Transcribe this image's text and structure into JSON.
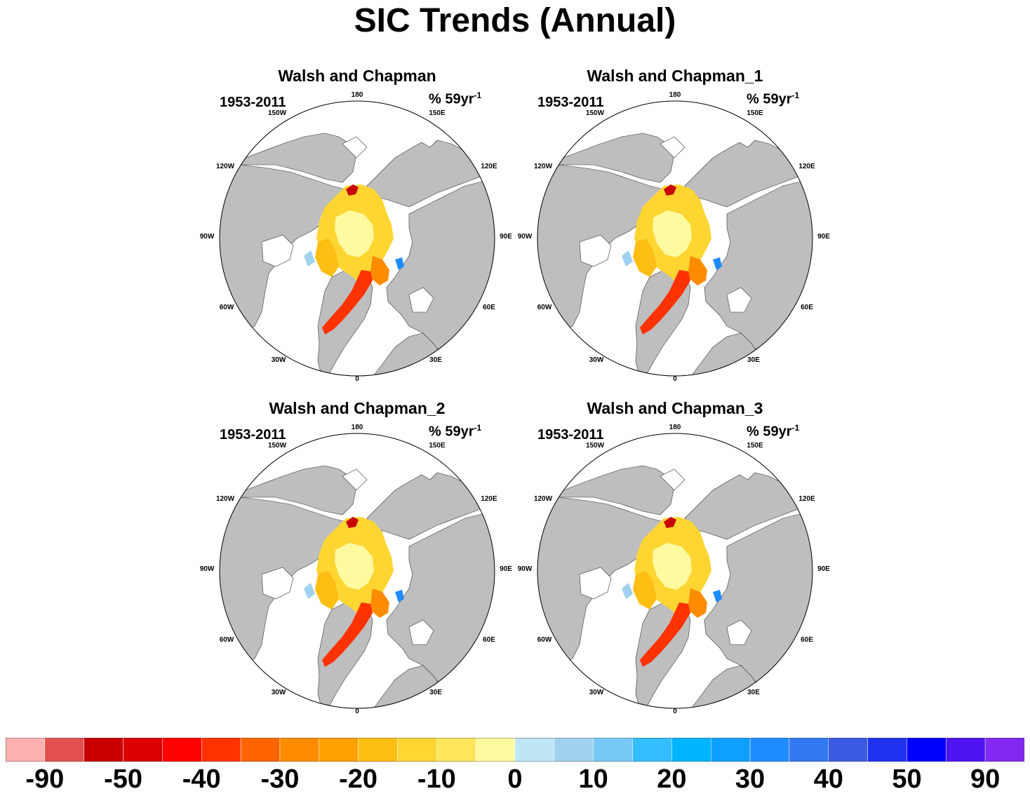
{
  "title": "SIC Trends (Annual)",
  "panels": [
    {
      "title": "Walsh and Chapman",
      "period": "1953-2011",
      "units_main": "% 59yr",
      "units_sup": "-1"
    },
    {
      "title": "Walsh and Chapman_1",
      "period": "1953-2011",
      "units_main": "% 59yr",
      "units_sup": "-1"
    },
    {
      "title": "Walsh and Chapman_2",
      "period": "1953-2011",
      "units_main": "% 59yr",
      "units_sup": "-1"
    },
    {
      "title": "Walsh and Chapman_3",
      "period": "1953-2011",
      "units_main": "% 59yr",
      "units_sup": "-1"
    }
  ],
  "longitude_labels": [
    "180",
    "150E",
    "120E",
    "90E",
    "60E",
    "30E",
    "0",
    "30W",
    "60W",
    "90W",
    "120W",
    "150W"
  ],
  "colors": {
    "land": "#bebebe",
    "ocean": "#ffffff",
    "colorbar": [
      "#ffb1b1",
      "#e35050",
      "#c80000",
      "#dc0000",
      "#ff0000",
      "#ff3200",
      "#ff6400",
      "#ff8c00",
      "#ffa000",
      "#ffbe14",
      "#ffd532",
      "#ffe65a",
      "#fffaa0",
      "#bee6f5",
      "#a0d2f0",
      "#78c8f5",
      "#32beff",
      "#00b4ff",
      "#0fa0ff",
      "#1e8cff",
      "#3278f0",
      "#3c5ae6",
      "#1e32f0",
      "#0000ff",
      "#5014f0",
      "#8228f0"
    ]
  },
  "chart_data": {
    "type": "heatmap",
    "title": "SIC Trends (Annual)",
    "projection": "north polar stereographic",
    "variable": "sea ice concentration trend",
    "units": "% 59yr-1",
    "period": "1953-2011",
    "panels": [
      "Walsh and Chapman",
      "Walsh and Chapman_1",
      "Walsh and Chapman_2",
      "Walsh and Chapman_3"
    ],
    "colorbar_labels": [
      "-90",
      "-50",
      "-40",
      "-30",
      "-20",
      "-10",
      "0",
      "10",
      "20",
      "30",
      "40",
      "50",
      "90"
    ],
    "colorbar_levels": 26,
    "grid": false,
    "description": "Mostly weak negative trends (yellow, 0 to -20) over central Arctic; strong negative trends (red, -40 to -50) along Barents/Greenland Sea ice edge; small positive trends (blue) in Hudson Bay / Kara Sea pockets"
  }
}
